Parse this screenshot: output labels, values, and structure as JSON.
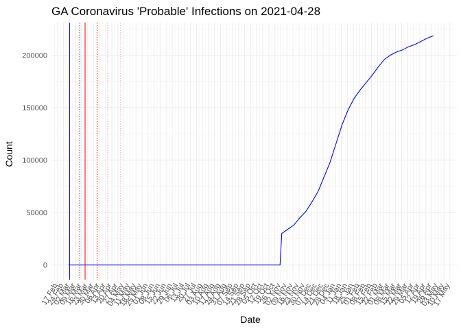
{
  "chart_data": {
    "type": "line",
    "title": "GA Coronavirus 'Probable' Infections on 2021-04-28",
    "xlabel": "Date",
    "ylabel": "Count",
    "x_axis": "date",
    "x_range": [
      "2020-02-10",
      "2021-05-25"
    ],
    "ylim": [
      -14000,
      231000
    ],
    "y_ticks": [
      0,
      50000,
      100000,
      150000,
      200000
    ],
    "y_tick_labels": [
      "0",
      "50000",
      "100000",
      "150000",
      "200000"
    ],
    "x_tick_dates": [
      "2020-02-17",
      "2020-02-24",
      "2020-03-02",
      "2020-03-09",
      "2020-03-16",
      "2020-03-23",
      "2020-03-30",
      "2020-04-06",
      "2020-04-13",
      "2020-04-20",
      "2020-04-27",
      "2020-05-04",
      "2020-05-11",
      "2020-05-18",
      "2020-05-25",
      "2020-06-01",
      "2020-06-08",
      "2020-06-15",
      "2020-06-22",
      "2020-06-29",
      "2020-07-06",
      "2020-07-13",
      "2020-07-20",
      "2020-07-27",
      "2020-08-03",
      "2020-08-10",
      "2020-08-17",
      "2020-08-24",
      "2020-08-31",
      "2020-09-07",
      "2020-09-14",
      "2020-09-21",
      "2020-09-28",
      "2020-10-05",
      "2020-10-12",
      "2020-10-19",
      "2020-10-26",
      "2020-11-02",
      "2020-11-09",
      "2020-11-16",
      "2020-11-23",
      "2020-11-30",
      "2020-12-07",
      "2020-12-14",
      "2020-12-21",
      "2020-12-28",
      "2021-01-04",
      "2021-01-11",
      "2021-01-18",
      "2021-01-25",
      "2021-02-01",
      "2021-02-08",
      "2021-02-15",
      "2021-02-22",
      "2021-03-01",
      "2021-03-08",
      "2021-03-15",
      "2021-03-22",
      "2021-03-29",
      "2021-04-05",
      "2021-04-12",
      "2021-04-19",
      "2021-04-26",
      "2021-05-03",
      "2021-05-10",
      "2021-05-17"
    ],
    "x_tick_labels": [
      "17 Feb",
      "24 Feb",
      "02 Mar",
      "09 Mar",
      "16 Mar",
      "23 Mar",
      "30 Mar",
      "06 Apr",
      "13 Apr",
      "20 Apr",
      "27 Apr",
      "04 May",
      "11 May",
      "18 May",
      "25 May",
      "01 Jun",
      "08 Jun",
      "15 Jun",
      "22 Jun",
      "29 Jun",
      "06 Jul",
      "13 Jul",
      "20 Jul",
      "27 Jul",
      "03 Aug",
      "10 Aug",
      "17 Aug",
      "24 Aug",
      "31 Aug",
      "07 Sep",
      "14 Sep",
      "21 Sep",
      "28 Sep",
      "05 Oct",
      "12 Oct",
      "19 Oct",
      "26 Oct",
      "02 Nov",
      "09 Nov",
      "16 Nov",
      "23 Nov",
      "30 Nov",
      "07 Dec",
      "14 Dec",
      "21 Dec",
      "28 Dec",
      "04 Jan",
      "11 Jan",
      "18 Jan",
      "25 Jan",
      "01 Feb",
      "08 Feb",
      "15 Feb",
      "22 Feb",
      "01 Mar",
      "08 Mar",
      "15 Mar",
      "22 Mar",
      "29 Mar",
      "05 Apr",
      "12 Apr",
      "19 Apr",
      "26 Apr",
      "03 May",
      "10 May",
      "17 May"
    ],
    "grid": true,
    "series": [
      {
        "color": "#0000ff",
        "x": [
          "2020-03-01",
          "2020-11-01",
          "2020-11-03",
          "2020-11-10",
          "2020-11-17",
          "2020-11-24",
          "2020-12-01",
          "2020-12-08",
          "2020-12-15",
          "2020-12-22",
          "2020-12-29",
          "2021-01-05",
          "2021-01-12",
          "2021-01-19",
          "2021-01-26",
          "2021-02-02",
          "2021-02-09",
          "2021-02-16",
          "2021-02-23",
          "2021-03-02",
          "2021-03-09",
          "2021-03-16",
          "2021-03-23",
          "2021-03-30",
          "2021-04-06",
          "2021-04-13",
          "2021-04-20",
          "2021-04-28"
        ],
        "y": [
          0,
          0,
          30000,
          34000,
          38000,
          45000,
          51000,
          60000,
          70000,
          84000,
          98000,
          116000,
          134000,
          148000,
          159000,
          167000,
          174000,
          181000,
          189000,
          196000,
          200000,
          203000,
          205000,
          208000,
          210000,
          213000,
          216000,
          218500
        ]
      }
    ],
    "vertical_lines": [
      {
        "date": "2020-03-02",
        "color": "#0000ff",
        "style": "solid"
      },
      {
        "date": "2020-03-14",
        "color": "#8b0000",
        "style": "dotted"
      },
      {
        "date": "2020-03-20",
        "color": "#ff0000",
        "style": "solid"
      },
      {
        "date": "2020-04-03",
        "color": "#ff0000",
        "style": "dotted"
      },
      {
        "date": "2020-04-15",
        "color": "#ffb6c1",
        "style": "dotted"
      },
      {
        "date": "2020-04-30",
        "color": "#ffb6c1",
        "style": "dotted"
      }
    ]
  }
}
